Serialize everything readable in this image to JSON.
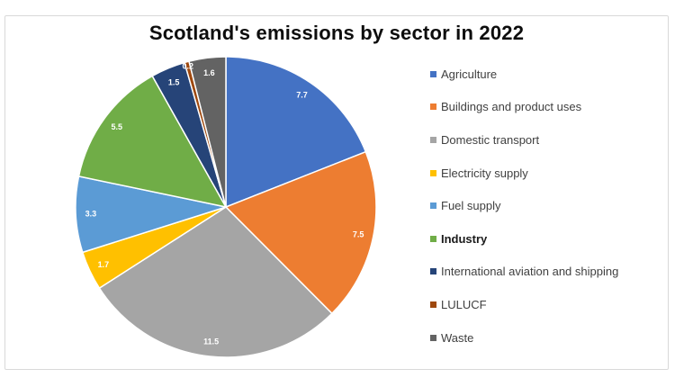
{
  "frame": {
    "background_color": "#FFFFFF",
    "border_color": "#D9D9D9"
  },
  "chart_data": {
    "type": "pie",
    "title": "Scotland's emissions by sector in 2022",
    "legend_position": "right",
    "start_angle_deg": 0,
    "direction": "clockwise",
    "total": 40.5,
    "data_label_color": "#FFFFFF",
    "slice_border_color": "#FFFFFF",
    "slices": [
      {
        "label": "Agriculture",
        "value": 7.7,
        "data_label": "7.7",
        "color": "#4472C4",
        "legend_bold": false
      },
      {
        "label": "Buildings and product uses",
        "value": 7.5,
        "data_label": "7.5",
        "color": "#ED7D31",
        "legend_bold": false
      },
      {
        "label": "Domestic transport",
        "value": 11.5,
        "data_label": "11.5",
        "color": "#A5A5A5",
        "legend_bold": false
      },
      {
        "label": "Electricity supply",
        "value": 1.7,
        "data_label": "1.7",
        "color": "#FFC000",
        "legend_bold": false
      },
      {
        "label": "Fuel supply",
        "value": 3.3,
        "data_label": "3.3",
        "color": "#5B9BD5",
        "legend_bold": false
      },
      {
        "label": "Industry",
        "value": 5.5,
        "data_label": "5.5",
        "color": "#70AD47",
        "legend_bold": true
      },
      {
        "label": "International aviation and shipping",
        "value": 1.5,
        "data_label": "1.5",
        "color": "#264478",
        "legend_bold": false
      },
      {
        "label": "LULUCF",
        "value": 0.2,
        "data_label": "0.2",
        "color": "#9E480E",
        "legend_bold": false
      },
      {
        "label": "Waste",
        "value": 1.6,
        "data_label": "1.6",
        "color": "#636363",
        "legend_bold": false
      }
    ]
  }
}
